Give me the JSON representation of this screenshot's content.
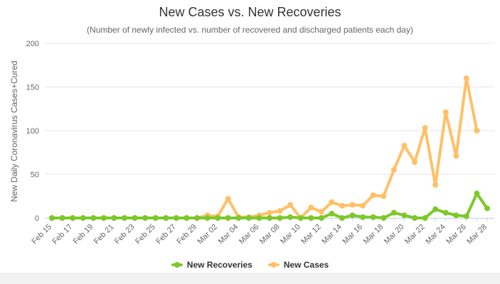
{
  "chart_data": {
    "type": "line",
    "title": "New Cases vs. New Recoveries",
    "subtitle": "(Number of newly infected vs. number of recovered and discharged patients each day)",
    "ylabel": "New Daily Coronavirus Cases+Cured",
    "xlabel": "",
    "ylim": [
      0,
      200
    ],
    "yticks": [
      0,
      50,
      100,
      150,
      200
    ],
    "grid": true,
    "legend_position": "bottom",
    "x": [
      "Feb 15",
      "Feb 16",
      "Feb 17",
      "Feb 18",
      "Feb 19",
      "Feb 20",
      "Feb 21",
      "Feb 22",
      "Feb 23",
      "Feb 24",
      "Feb 25",
      "Feb 26",
      "Feb 27",
      "Feb 28",
      "Feb 29",
      "Mar 01",
      "Mar 02",
      "Mar 03",
      "Mar 04",
      "Mar 05",
      "Mar 06",
      "Mar 07",
      "Mar 08",
      "Mar 09",
      "Mar 10",
      "Mar 11",
      "Mar 12",
      "Mar 13",
      "Mar 14",
      "Mar 15",
      "Mar 16",
      "Mar 17",
      "Mar 18",
      "Mar 19",
      "Mar 20",
      "Mar 21",
      "Mar 22",
      "Mar 23",
      "Mar 24",
      "Mar 25",
      "Mar 26",
      "Mar 27",
      "Mar 28"
    ],
    "x_tick_labels": [
      "Feb 15",
      "Feb 17",
      "Feb 19",
      "Feb 21",
      "Feb 23",
      "Feb 25",
      "Feb 27",
      "Feb 29",
      "Mar 02",
      "Mar 04",
      "Mar 06",
      "Mar 08",
      "Mar 10",
      "Mar 12",
      "Mar 14",
      "Mar 16",
      "Mar 18",
      "Mar 20",
      "Mar 22",
      "Mar 24",
      "Mar 26",
      "Mar 28"
    ],
    "series": [
      {
        "name": "New Recoveries",
        "color": "#7cc82a",
        "values": [
          0,
          0,
          0,
          0,
          0,
          0,
          0,
          0,
          0,
          0,
          0,
          0,
          0,
          0,
          0,
          0,
          0,
          0,
          0,
          0,
          0,
          0,
          0,
          1,
          0,
          0,
          0,
          5,
          0,
          3,
          1,
          1,
          0,
          6,
          3,
          0,
          0,
          10,
          6,
          3,
          2,
          28,
          11
        ]
      },
      {
        "name": "New Cases",
        "color": "#ffc067",
        "values": [
          0,
          0,
          0,
          0,
          0,
          0,
          0,
          0,
          0,
          0,
          0,
          0,
          0,
          0,
          0,
          3,
          2,
          22,
          1,
          1,
          3,
          6,
          8,
          15,
          0,
          12,
          7,
          18,
          14,
          15,
          14,
          26,
          25,
          55,
          83,
          64,
          103,
          38,
          121,
          71,
          160,
          100,
          null
        ]
      }
    ]
  }
}
